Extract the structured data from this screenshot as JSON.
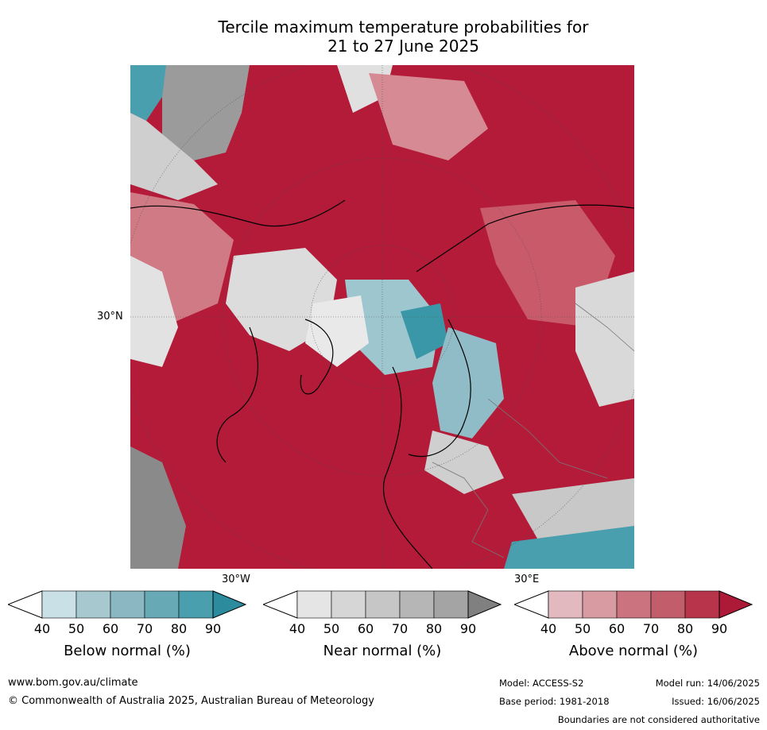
{
  "title": {
    "line1": "Tercile maximum temperature probabilities for",
    "line2": "21 to 27 June 2025"
  },
  "map": {
    "lat_label": "30°N",
    "lon_labels": [
      "30°W",
      "30°E"
    ],
    "colors": {
      "above_90": "#b31b39",
      "above_70": "#c95a6a",
      "above_50": "#dba0a8",
      "near": "#d4d4d4",
      "near_dark": "#8a8a8a",
      "below_50": "#b7d3da",
      "below_80": "#3a97a8"
    }
  },
  "colorbars": [
    {
      "caption": "Below normal (%)",
      "ticks": [
        "40",
        "50",
        "60",
        "70",
        "80",
        "90"
      ],
      "colors": [
        "#ffffff",
        "#c9e0e6",
        "#a7c8cf",
        "#8ab7c2",
        "#68a9b6",
        "#4a9fae",
        "#2c8c9e"
      ]
    },
    {
      "caption": "Near normal (%)",
      "ticks": [
        "40",
        "50",
        "60",
        "70",
        "80",
        "90"
      ],
      "colors": [
        "#ffffff",
        "#e5e5e5",
        "#d6d6d6",
        "#c6c6c6",
        "#b6b6b6",
        "#a4a4a4",
        "#808080"
      ]
    },
    {
      "caption": "Above normal (%)",
      "ticks": [
        "40",
        "50",
        "60",
        "70",
        "80",
        "90"
      ],
      "colors": [
        "#ffffff",
        "#e2b9be",
        "#d89ba2",
        "#cb747f",
        "#c25d6b",
        "#b8344a",
        "#ad1a37"
      ]
    }
  ],
  "footer": {
    "website": "www.bom.gov.au/climate",
    "copyright": "© Commonwealth of Australia 2025, Australian Bureau of Meteorology",
    "model": "Model: ACCESS-S2",
    "base_period": "Base period: 1981-2018",
    "model_run": "Model run: 14/06/2025",
    "issued": "Issued: 16/06/2025",
    "disclaimer": "Boundaries are not considered authoritative"
  }
}
